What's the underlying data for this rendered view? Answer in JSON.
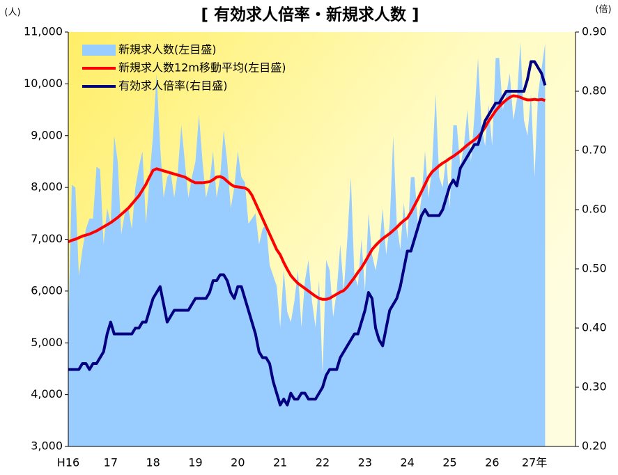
{
  "chart_data": {
    "type": "combo",
    "title": "[ 有効求人倍率・新規求人数 ]",
    "ylabel": "(人)",
    "y2label": "(倍)",
    "categories": [
      "H16",
      null,
      null,
      null,
      null,
      null,
      null,
      null,
      null,
      null,
      null,
      null,
      "17",
      null,
      null,
      null,
      null,
      null,
      null,
      null,
      null,
      null,
      null,
      null,
      "18",
      null,
      null,
      null,
      null,
      null,
      null,
      null,
      null,
      null,
      null,
      null,
      "19",
      null,
      null,
      null,
      null,
      null,
      null,
      null,
      null,
      null,
      null,
      null,
      "20",
      null,
      null,
      null,
      null,
      null,
      null,
      null,
      null,
      null,
      null,
      null,
      "21",
      null,
      null,
      null,
      null,
      null,
      null,
      null,
      null,
      null,
      null,
      null,
      "22",
      null,
      null,
      null,
      null,
      null,
      null,
      null,
      null,
      null,
      null,
      null,
      "23",
      null,
      null,
      null,
      null,
      null,
      null,
      null,
      null,
      null,
      null,
      null,
      "24",
      null,
      null,
      null,
      null,
      null,
      null,
      null,
      null,
      null,
      null,
      null,
      "25",
      null,
      null,
      null,
      null,
      null,
      null,
      null,
      null,
      null,
      null,
      null,
      "26",
      null,
      null,
      null,
      null,
      null,
      null,
      null,
      null,
      null,
      null,
      null,
      "27年",
      null,
      null,
      null
    ],
    "series": [
      {
        "name": "新規求人数(左目盛)",
        "type": "area",
        "color": "#99ccff",
        "values": [
          5300,
          8050,
          8000,
          6300,
          6800,
          7200,
          7400,
          7400,
          8400,
          8350,
          6900,
          7600,
          7300,
          9000,
          8500,
          7100,
          7500,
          7600,
          7200,
          8000,
          8400,
          8700,
          7300,
          8200,
          9000,
          10200,
          8800,
          7800,
          8200,
          8300,
          7800,
          8300,
          9200,
          8500,
          7800,
          8200,
          8500,
          9400,
          8500,
          7800,
          8100,
          8700,
          7800,
          8200,
          9100,
          8500,
          7600,
          8000,
          8700,
          8200,
          8100,
          7300,
          7400,
          7500,
          6900,
          7200,
          7300,
          6500,
          6300,
          6100,
          5300,
          6400,
          5600,
          5400,
          5800,
          6400,
          5300,
          6200,
          6600,
          5800,
          5300,
          6200,
          4400,
          6600,
          6400,
          5500,
          6000,
          6900,
          6000,
          7000,
          8200,
          6300,
          6100,
          7000,
          6000,
          7500,
          6700,
          6400,
          6800,
          7600,
          6700,
          7300,
          9000,
          7300,
          6800,
          7700,
          7000,
          8200,
          8200,
          7300,
          7800,
          8700,
          7800,
          8400,
          9800,
          8200,
          8000,
          8600,
          7600,
          9200,
          9200,
          8400,
          8800,
          9500,
          8500,
          9400,
          10500,
          9200,
          8800,
          9600,
          8800,
          10500,
          10500,
          9500,
          9800,
          10200,
          9300,
          9700,
          10800,
          9300,
          9000,
          9800,
          8200,
          9800,
          10300,
          10780
        ]
      },
      {
        "name": "新規求人数12m移動平均(左目盛)",
        "type": "line",
        "color": "#ff0000",
        "values": [
          6950,
          6980,
          7000,
          7030,
          7060,
          7080,
          7100,
          7130,
          7160,
          7200,
          7240,
          7280,
          7320,
          7370,
          7420,
          7480,
          7540,
          7600,
          7680,
          7760,
          7840,
          7950,
          8060,
          8200,
          8330,
          8360,
          8340,
          8320,
          8300,
          8280,
          8260,
          8240,
          8220,
          8200,
          8160,
          8120,
          8090,
          8090,
          8090,
          8100,
          8110,
          8150,
          8200,
          8210,
          8180,
          8120,
          8060,
          8020,
          8010,
          8000,
          7990,
          7950,
          7850,
          7700,
          7550,
          7400,
          7250,
          7100,
          6950,
          6800,
          6700,
          6550,
          6420,
          6300,
          6220,
          6150,
          6100,
          6050,
          6000,
          5950,
          5900,
          5860,
          5840,
          5840,
          5860,
          5900,
          5940,
          5980,
          6010,
          6080,
          6170,
          6260,
          6360,
          6450,
          6560,
          6680,
          6800,
          6880,
          6950,
          7010,
          7060,
          7110,
          7170,
          7230,
          7300,
          7360,
          7410,
          7520,
          7650,
          7780,
          7920,
          8060,
          8200,
          8300,
          8360,
          8420,
          8470,
          8510,
          8560,
          8600,
          8650,
          8700,
          8760,
          8820,
          8870,
          8920,
          8980,
          9060,
          9160,
          9280,
          9380,
          9480,
          9560,
          9630,
          9690,
          9740,
          9770,
          9760,
          9740,
          9710,
          9690,
          9690,
          9700,
          9690,
          9700,
          9680
        ]
      },
      {
        "name": "有効求人倍率(右目盛)",
        "type": "line",
        "axis": "y2",
        "color": "#000080",
        "values": [
          0.33,
          0.33,
          0.33,
          0.33,
          0.34,
          0.34,
          0.33,
          0.34,
          0.34,
          0.35,
          0.36,
          0.39,
          0.41,
          0.39,
          0.39,
          0.39,
          0.39,
          0.39,
          0.39,
          0.4,
          0.4,
          0.41,
          0.41,
          0.43,
          0.45,
          0.46,
          0.47,
          0.44,
          0.41,
          0.42,
          0.43,
          0.43,
          0.43,
          0.43,
          0.43,
          0.44,
          0.45,
          0.45,
          0.45,
          0.45,
          0.46,
          0.48,
          0.48,
          0.49,
          0.49,
          0.48,
          0.46,
          0.45,
          0.47,
          0.47,
          0.45,
          0.43,
          0.41,
          0.39,
          0.36,
          0.35,
          0.35,
          0.34,
          0.31,
          0.29,
          0.27,
          0.28,
          0.27,
          0.29,
          0.28,
          0.28,
          0.29,
          0.29,
          0.28,
          0.28,
          0.28,
          0.29,
          0.3,
          0.32,
          0.33,
          0.33,
          0.33,
          0.35,
          0.36,
          0.37,
          0.38,
          0.39,
          0.39,
          0.41,
          0.43,
          0.46,
          0.45,
          0.4,
          0.38,
          0.37,
          0.4,
          0.43,
          0.44,
          0.45,
          0.47,
          0.5,
          0.53,
          0.53,
          0.55,
          0.57,
          0.59,
          0.6,
          0.59,
          0.59,
          0.59,
          0.59,
          0.6,
          0.62,
          0.64,
          0.65,
          0.64,
          0.67,
          0.68,
          0.69,
          0.7,
          0.71,
          0.71,
          0.73,
          0.75,
          0.76,
          0.77,
          0.78,
          0.78,
          0.79,
          0.8,
          0.8,
          0.8,
          0.8,
          0.8,
          0.8,
          0.82,
          0.85,
          0.85,
          0.84,
          0.83,
          0.81
        ]
      }
    ],
    "ylim": [
      3000,
      11000
    ],
    "yticks": [
      {
        "value": 3000,
        "label": "3,000"
      },
      {
        "value": 4000,
        "label": "4,000"
      },
      {
        "value": 5000,
        "label": "5,000"
      },
      {
        "value": 6000,
        "label": "6,000"
      },
      {
        "value": 7000,
        "label": "7,000"
      },
      {
        "value": 8000,
        "label": "8,000"
      },
      {
        "value": 9000,
        "label": "9,000"
      },
      {
        "value": 10000,
        "label": "10,000"
      },
      {
        "value": 11000,
        "label": "11,000"
      }
    ],
    "y2lim": [
      0.2,
      0.9
    ],
    "y2ticks": [
      {
        "value": 0.2,
        "label": "0.20"
      },
      {
        "value": 0.3,
        "label": "0.30"
      },
      {
        "value": 0.4,
        "label": "0.40"
      },
      {
        "value": 0.5,
        "label": "0.50"
      },
      {
        "value": 0.6,
        "label": "0.60"
      },
      {
        "value": 0.7,
        "label": "0.70"
      },
      {
        "value": 0.8,
        "label": "0.80"
      },
      {
        "value": 0.9,
        "label": "0.90"
      }
    ],
    "legend": "upper-left"
  }
}
